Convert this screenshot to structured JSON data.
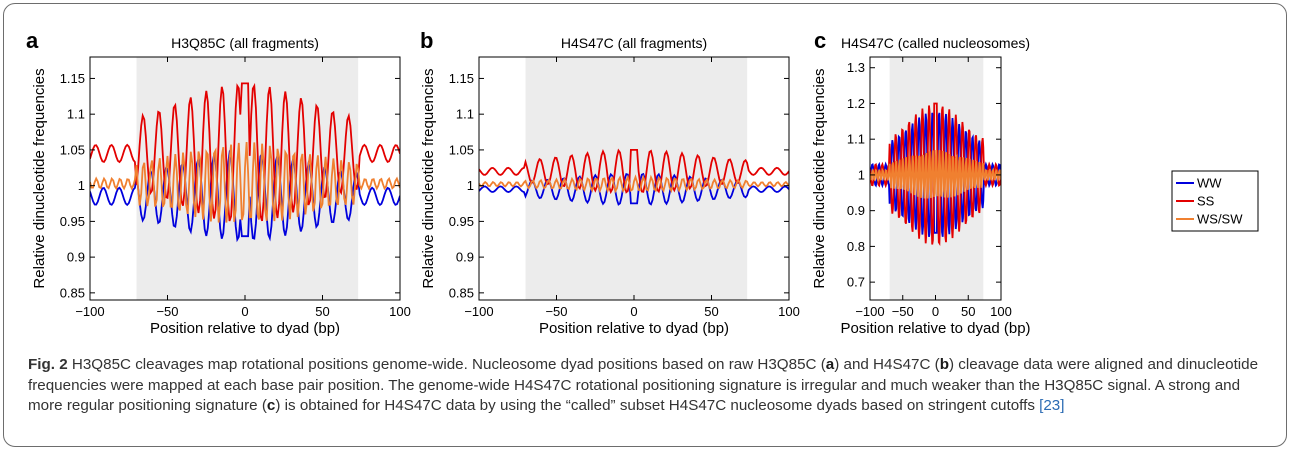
{
  "chart_data": [
    {
      "type": "line",
      "panel_letter": "a",
      "title": "H3Q85C (all fragments)",
      "xlabel": "Position relative to dyad (bp)",
      "ylabel": "Relative dinucleotide frequencies",
      "xlim": [
        -100,
        100
      ],
      "ylim": [
        0.84,
        1.18
      ],
      "xticks": [
        "−100",
        "−50",
        "0",
        "50",
        "100"
      ],
      "yticks": [
        "0.85",
        "0.9",
        "0.95",
        "1",
        "1.05",
        "1.1",
        "1.15"
      ],
      "shaded_region": [
        -70,
        73
      ],
      "series": [
        {
          "name": "WW",
          "color": "#0000dd",
          "baseline": 0.985,
          "amplitude": 0.062,
          "period": 10.2,
          "phase": 1.3,
          "outer_amp": 0.012
        },
        {
          "name": "SS",
          "color": "#e30000",
          "baseline": 1.045,
          "amplitude": 0.098,
          "period": 10.2,
          "phase": 4.4,
          "outer_amp": 0.012
        },
        {
          "name": "WS/SW",
          "color": "#f08030",
          "baseline": 1.003,
          "amplitude": 0.058,
          "period": 5.1,
          "phase": 0.4,
          "outer_amp": 0.007
        }
      ]
    },
    {
      "type": "line",
      "panel_letter": "b",
      "title": "H4S47C (all fragments)",
      "xlabel": "Position relative to dyad (bp)",
      "ylabel": "Relative dinucleotide frequencies",
      "xlim": [
        -100,
        100
      ],
      "ylim": [
        0.84,
        1.18
      ],
      "xticks": [
        "−100",
        "−50",
        "0",
        "50",
        "100"
      ],
      "yticks": [
        "0.85",
        "0.9",
        "0.95",
        "1",
        "1.05",
        "1.1",
        "1.15"
      ],
      "shaded_region": [
        -70,
        73
      ],
      "series": [
        {
          "name": "WW",
          "color": "#0000dd",
          "baseline": 0.995,
          "amplitude": 0.022,
          "period": 10.2,
          "phase": 4.4,
          "outer_amp": 0.004
        },
        {
          "name": "SS",
          "color": "#e30000",
          "baseline": 1.02,
          "amplitude": 0.03,
          "period": 10.2,
          "phase": 1.3,
          "outer_amp": 0.005
        },
        {
          "name": "WS/SW",
          "color": "#f08030",
          "baseline": 1.002,
          "amplitude": 0.01,
          "period": 5.1,
          "phase": 0.4,
          "outer_amp": 0.003
        }
      ]
    },
    {
      "type": "line",
      "panel_letter": "c",
      "title": "H4S47C (called nucleosomes)",
      "xlabel": "Position relative to dyad (bp)",
      "ylabel": "Relative dinucleotide frequencies",
      "xlim": [
        -100,
        100
      ],
      "ylim": [
        0.65,
        1.33
      ],
      "xticks": [
        "−100",
        "−50",
        "0",
        "50",
        "100"
      ],
      "yticks": [
        "0.7",
        "0.8",
        "0.9",
        "1",
        "1.1",
        "1.2",
        "1.3"
      ],
      "shaded_region": [
        -70,
        73
      ],
      "series": [
        {
          "name": "WW",
          "color": "#0000dd",
          "baseline": 1.0,
          "amplitude": 0.18,
          "period": 10.2,
          "phase": 4.4,
          "outer_amp": 0.03
        },
        {
          "name": "SS",
          "color": "#e30000",
          "baseline": 1.0,
          "amplitude": 0.2,
          "period": 10.2,
          "phase": 1.3,
          "outer_amp": 0.03
        },
        {
          "name": "WS/SW",
          "color": "#f08030",
          "baseline": 1.0,
          "amplitude": 0.07,
          "period": 5.1,
          "phase": 0.4,
          "outer_amp": 0.015
        }
      ]
    }
  ],
  "legend": {
    "placement": "right-of-panel-c",
    "entries": [
      {
        "name": "WW",
        "color": "#0000dd"
      },
      {
        "name": "SS",
        "color": "#e30000"
      },
      {
        "name": "WS/SW",
        "color": "#f08030"
      }
    ]
  },
  "caption": {
    "label": "Fig. 2",
    "parts": [
      {
        "t": " H3Q85C cleavages map rotational positions genome-wide. Nucleosome dyad positions based on raw H3Q85C ("
      },
      {
        "t": "a",
        "b": true
      },
      {
        "t": ") and H4S47C ("
      },
      {
        "t": "b",
        "b": true
      },
      {
        "t": ") cleavage data were aligned and dinucleotide frequencies were mapped at each base pair position. The genome-wide H4S47C rotational positioning signature is irregular and much weaker than the H3Q85C signal. A strong and more regular positioning signature ("
      },
      {
        "t": "c",
        "b": true
      },
      {
        "t": ") is obtained for H4S47C data by using the “called” subset H4S47C nucleosome dyads based on stringent cutoffs "
      },
      {
        "t": "[23]",
        "ref": true
      }
    ]
  }
}
